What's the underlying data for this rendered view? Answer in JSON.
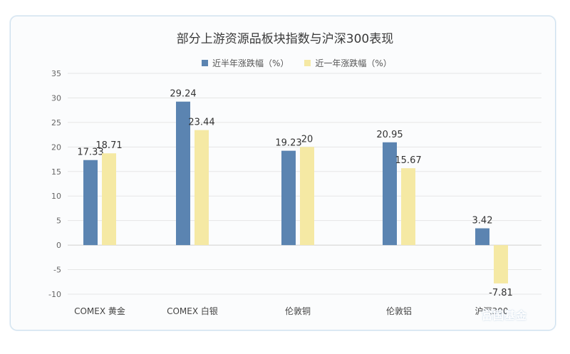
{
  "chart_data": {
    "type": "bar",
    "title": "部分上游资源品板块指数与沪深300表现",
    "categories": [
      "COMEX 黄金",
      "COMEX 白银",
      "伦敦铜",
      "伦敦铝",
      "沪深300"
    ],
    "series": [
      {
        "name": "近半年涨跌幅（%）",
        "color": "#5b84b1",
        "values": [
          17.33,
          29.24,
          19.23,
          20.95,
          3.42
        ]
      },
      {
        "name": "近一年涨跌幅（%）",
        "color": "#f5e9a4",
        "values": [
          18.71,
          23.44,
          20,
          15.67,
          -7.81
        ]
      }
    ],
    "y_ticks": [
      35,
      30,
      25,
      20,
      15,
      10,
      5,
      0,
      -5,
      -10
    ],
    "ylim": [
      -10,
      35
    ],
    "grid": true,
    "legend_position": "top"
  },
  "watermark": "富国基金"
}
